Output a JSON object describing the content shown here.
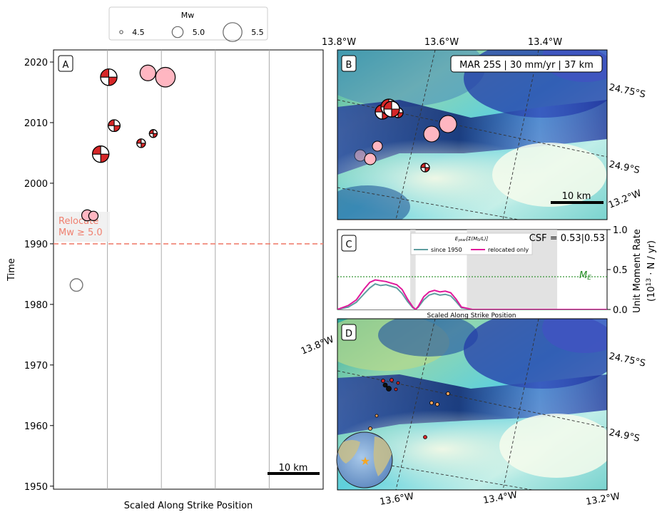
{
  "colors": {
    "beachball_red": "#d62728",
    "pink_event": "#ffb6c1",
    "relocate_line": "#f08070",
    "since1950": "#5f9ea0",
    "relocated_only": "#e0199b",
    "me_line": "#228b22",
    "star": "#f5a623"
  },
  "legend": {
    "title": "Mw",
    "entries": [
      {
        "label": "4.5",
        "mw": 4.5
      },
      {
        "label": "5.0",
        "mw": 5.0
      },
      {
        "label": "5.5",
        "mw": 5.5
      }
    ]
  },
  "panels": {
    "A": {
      "label": "A",
      "scalebar": "10 km",
      "relocate_text_1": "Relocate",
      "relocate_text_2": "Mw ≥ 5.0"
    },
    "B": {
      "label": "B",
      "info": "MAR 25S | 30 mm/yr | 37 km",
      "scalebar": "10 km"
    },
    "C": {
      "label": "C",
      "csf": "CSF = 0.53|0.53",
      "legend_title": "E_year[Σ(M0/L)]",
      "legend_since": "since 1950",
      "legend_relocated": "relocated only",
      "me_label": "M_E",
      "xlabel": "Scaled Along Strike Position"
    },
    "D": {
      "label": "D"
    }
  },
  "map_ticks": {
    "top": [
      "13.8°W",
      "13.6°W",
      "13.4°W"
    ],
    "right_B": [
      "24.75°S",
      "24.9°S",
      "13.2°W"
    ],
    "left_D": [
      "13.8°W"
    ],
    "right_D": [
      "24.75°S",
      "24.9°S"
    ],
    "bottom_D": [
      "13.6°W",
      "13.4°W",
      "13.2°W"
    ]
  },
  "chart_data": [
    {
      "type": "scatter",
      "panel": "A",
      "title": "",
      "xlabel": "Scaled Along Strike Position",
      "ylabel": "Time",
      "xlim": [
        0,
        1
      ],
      "ylim": [
        1949.5,
        2022
      ],
      "yticks": [
        1950,
        1960,
        1970,
        1980,
        1990,
        2000,
        2010,
        2020
      ],
      "xgrid": [
        0.2,
        0.4,
        0.6,
        0.8
      ],
      "relocate_threshold_year": 1990,
      "points": [
        {
          "x": 0.205,
          "y": 2017.5,
          "mw": 5.35,
          "kind": "beachball"
        },
        {
          "x": 0.35,
          "y": 2018.2,
          "mw": 5.3,
          "kind": "pink"
        },
        {
          "x": 0.415,
          "y": 2017.5,
          "mw": 5.55,
          "kind": "pink"
        },
        {
          "x": 0.225,
          "y": 2009.5,
          "mw": 5.05,
          "kind": "beachball"
        },
        {
          "x": 0.37,
          "y": 2008.2,
          "mw": 4.8,
          "kind": "beachball"
        },
        {
          "x": 0.325,
          "y": 2006.6,
          "mw": 4.85,
          "kind": "beachball"
        },
        {
          "x": 0.175,
          "y": 2004.8,
          "mw": 5.35,
          "kind": "beachball"
        },
        {
          "x": 0.125,
          "y": 1994.7,
          "mw": 5.0,
          "kind": "pink"
        },
        {
          "x": 0.148,
          "y": 1994.6,
          "mw": 4.9,
          "kind": "pink"
        },
        {
          "x": 0.085,
          "y": 1983.2,
          "mw": 5.1,
          "kind": "open"
        }
      ]
    },
    {
      "type": "area",
      "panel": "C",
      "title": "",
      "xlabel": "Scaled Along Strike Position",
      "ylabel": "Unit Moment Rate (10^13 · N / yr)",
      "xlim": [
        0,
        1
      ],
      "ylim": [
        0,
        1.0
      ],
      "yticks": [
        0.0,
        0.5,
        1.0
      ],
      "me_value": 0.41,
      "shaded_x": [
        [
          0.27,
          0.29
        ],
        [
          0.48,
          0.815
        ]
      ],
      "series": [
        {
          "name": "since 1950",
          "x": [
            0,
            0.04,
            0.07,
            0.1,
            0.12,
            0.14,
            0.16,
            0.18,
            0.2,
            0.22,
            0.24,
            0.26,
            0.28,
            0.29,
            0.3,
            0.32,
            0.34,
            0.36,
            0.38,
            0.4,
            0.42,
            0.44,
            0.46,
            0.5,
            0.6,
            0.8,
            1.0
          ],
          "y": [
            0,
            0.03,
            0.09,
            0.2,
            0.27,
            0.32,
            0.3,
            0.31,
            0.29,
            0.27,
            0.2,
            0.1,
            0.02,
            0,
            0.03,
            0.12,
            0.18,
            0.2,
            0.18,
            0.19,
            0.17,
            0.1,
            0.02,
            0,
            0,
            0,
            0
          ]
        },
        {
          "name": "relocated only",
          "x": [
            0,
            0.04,
            0.07,
            0.1,
            0.12,
            0.14,
            0.16,
            0.18,
            0.2,
            0.22,
            0.24,
            0.26,
            0.28,
            0.29,
            0.3,
            0.32,
            0.34,
            0.36,
            0.38,
            0.4,
            0.42,
            0.44,
            0.46,
            0.5,
            0.6,
            0.8,
            1.0
          ],
          "y": [
            0,
            0.05,
            0.12,
            0.26,
            0.34,
            0.37,
            0.36,
            0.35,
            0.33,
            0.31,
            0.25,
            0.13,
            0.03,
            0,
            0.04,
            0.16,
            0.22,
            0.24,
            0.22,
            0.23,
            0.21,
            0.13,
            0.03,
            0,
            0,
            0,
            0
          ]
        }
      ]
    }
  ]
}
